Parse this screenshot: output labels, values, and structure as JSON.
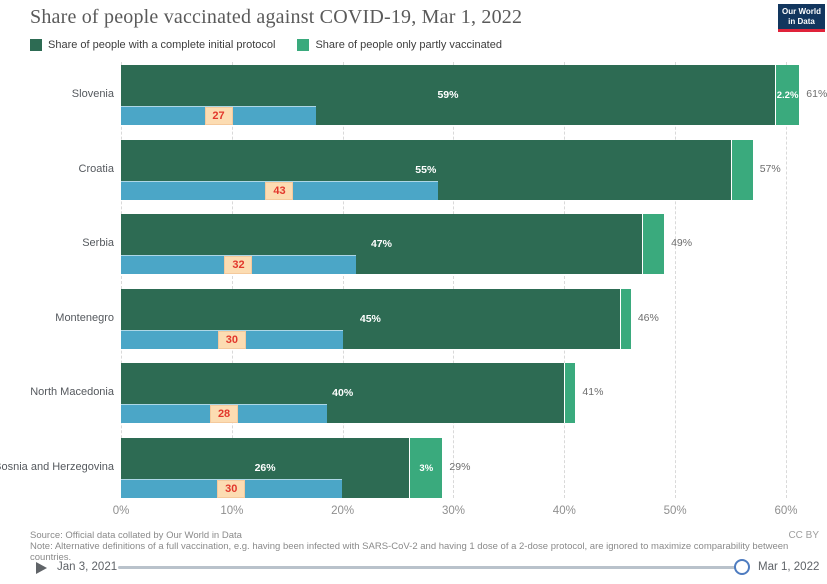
{
  "header": {
    "title": "Share of people vaccinated against COVID-19, Mar 1, 2022",
    "logo": {
      "line1": "Our World",
      "line2": "in Data",
      "bg_color": "#12365e",
      "stripe_color": "#e0233a"
    }
  },
  "legend": [
    {
      "label": "Share of people with a complete initial protocol",
      "color": "#2d6b53"
    },
    {
      "label": "Share of people only partly vaccinated",
      "color": "#3aaa7d"
    }
  ],
  "chart_data": {
    "type": "bar",
    "orientation": "horizontal",
    "stacked": true,
    "title": "Share of people vaccinated against COVID-19, Mar 1, 2022",
    "xlim": [
      0,
      60
    ],
    "grid": "dashed-vertical",
    "axis": {
      "ticks": [
        "0%",
        "10%",
        "20%",
        "30%",
        "40%",
        "50%",
        "60%"
      ]
    },
    "categories": [
      "Slovenia",
      "Croatia",
      "Serbia",
      "Montenegro",
      "North Macedonia",
      "Bosnia and Herzegovina"
    ],
    "series": [
      {
        "name": "Share of people with a complete initial protocol",
        "color": "#2d6b53",
        "values": [
          59,
          55,
          47,
          45,
          40,
          26
        ],
        "bar_labels": [
          "59%",
          "55%",
          "47%",
          "45%",
          "40%",
          "26%"
        ]
      },
      {
        "name": "Share of people only partly vaccinated",
        "color": "#3aaa7d",
        "values": [
          2.2,
          2,
          2,
          1,
          1,
          3
        ],
        "bar_labels": [
          "2.2%",
          "",
          "",
          "",
          "",
          "3%"
        ]
      }
    ],
    "totals": [
      61,
      57,
      49,
      46,
      41,
      29
    ],
    "total_labels": [
      "61%",
      "57%",
      "49%",
      "46%",
      "41%",
      "29%"
    ],
    "overlay_bars": {
      "bar_color": "#4ba6c7",
      "badge_bg": "#fcdcb2",
      "badge_text_color": "#e2372c",
      "values": [
        27,
        43,
        32,
        30,
        28,
        30
      ],
      "axis_extents_pct": [
        17.6,
        28.6,
        21.2,
        20.0,
        18.6,
        19.9
      ]
    }
  },
  "footer": {
    "source": "Source: Official data collated by Our World in Data",
    "note": "Note: Alternative definitions of a full vaccination, e.g. having been infected with SARS-CoV-2 and having 1 dose of a 2-dose protocol, are ignored to maximize comparability between countries.",
    "license": "CC BY"
  },
  "timeline": {
    "start": "Jan 3, 2021",
    "end": "Mar 1, 2022"
  }
}
